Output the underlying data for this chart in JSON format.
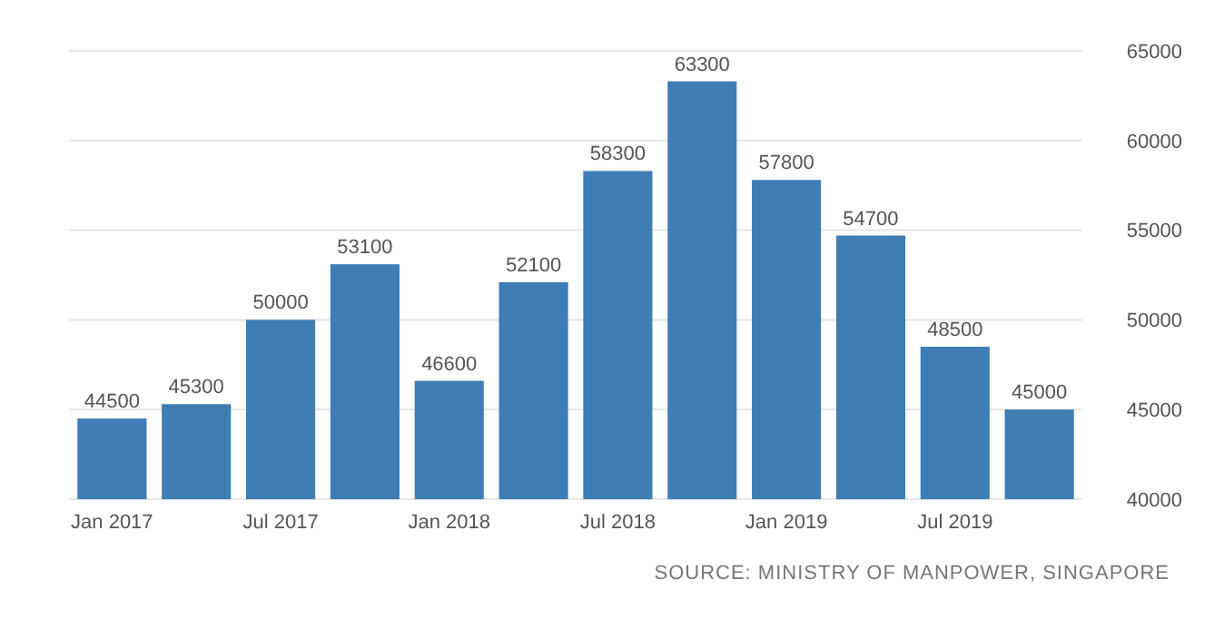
{
  "chart_data": {
    "type": "bar",
    "categories": [
      "Jan 2017",
      null,
      "Jul 2017",
      null,
      "Jan 2018",
      null,
      "Jul 2018",
      null,
      "Jan 2019",
      null,
      "Jul 2019",
      null
    ],
    "values": [
      44500,
      45300,
      50000,
      53100,
      46600,
      52100,
      58300,
      63300,
      57800,
      54700,
      48500,
      45000
    ],
    "color": "#3f7db5",
    "data_labels": true,
    "ylim": [
      40000,
      65000
    ],
    "yticks": [
      40000,
      45000,
      50000,
      55000,
      60000,
      65000
    ],
    "grid": "y",
    "annotations": [
      "SOURCE: MINISTRY OF MANPOWER, SINGAPORE"
    ]
  }
}
